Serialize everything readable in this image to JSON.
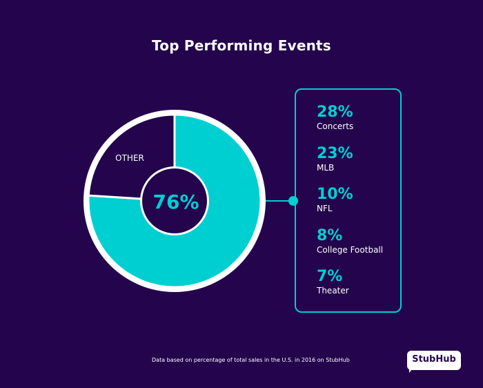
{
  "title": "Top Performing Events",
  "chart_data": {
    "type": "pie",
    "style": "donut",
    "slices": [
      {
        "label": "",
        "value": 76,
        "color": "#00cfd1"
      },
      {
        "label": "OTHER",
        "value": 24,
        "color": "#24054d"
      }
    ],
    "center_label": "76%",
    "breakdown": [
      {
        "value": "28%",
        "label": "Concerts"
      },
      {
        "value": "23%",
        "label": "MLB"
      },
      {
        "value": "10%",
        "label": "NFL"
      },
      {
        "value": "8%",
        "label": "College Football"
      },
      {
        "value": "7%",
        "label": "Theater"
      }
    ]
  },
  "footnote": "Data based on percentage of total sales in the U.S. in 2016 on StubHub",
  "logo": "StubHub",
  "colors": {
    "background": "#24054d",
    "accent": "#00cfd1",
    "text": "#ffffff"
  }
}
